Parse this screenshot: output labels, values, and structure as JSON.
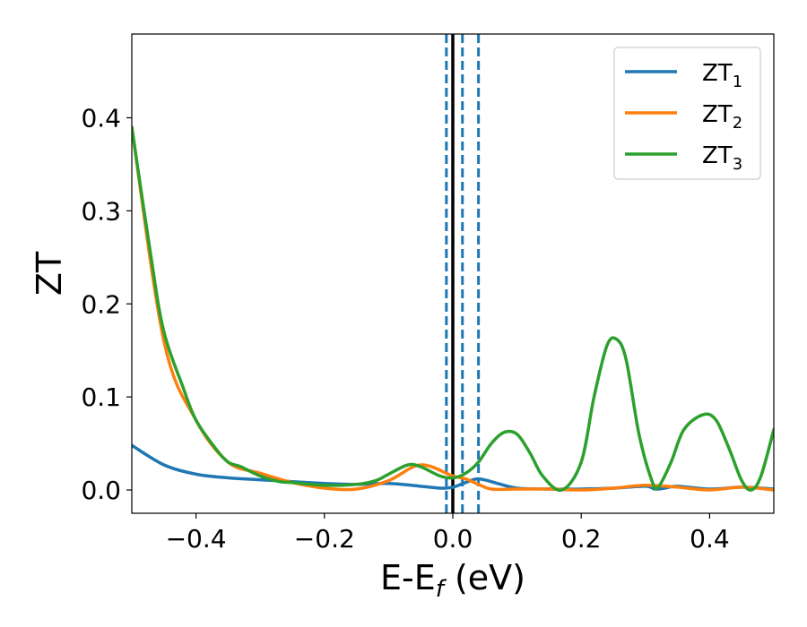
{
  "chart_data": {
    "type": "line",
    "xlabel": "E-E",
    "xlabel_sub": "f",
    "xlabel_unit": " (eV)",
    "ylabel": "ZT",
    "xlim": [
      -0.5,
      0.5
    ],
    "ylim": [
      -0.025,
      0.49
    ],
    "xticks": [
      -0.4,
      -0.2,
      0.0,
      0.2,
      0.4
    ],
    "xtick_labels": [
      "−0.4",
      "−0.2",
      "0.0",
      "0.2",
      "0.4"
    ],
    "yticks": [
      0.0,
      0.1,
      0.2,
      0.3,
      0.4
    ],
    "ytick_labels": [
      "0.0",
      "0.1",
      "0.2",
      "0.3",
      "0.4"
    ],
    "grid": false,
    "legend_position": "top-right",
    "vertical_lines": [
      {
        "x": 0.0,
        "color": "#000000",
        "style": "solid"
      },
      {
        "x": -0.01,
        "color": "#1f77b4",
        "style": "dashed"
      },
      {
        "x": 0.015,
        "color": "#1f77b4",
        "style": "dashed"
      },
      {
        "x": 0.04,
        "color": "#1f77b4",
        "style": "dashed"
      }
    ],
    "series": [
      {
        "name": "ZT",
        "name_sub": "1",
        "color": "#1f77b4",
        "x": [
          -0.5,
          -0.45,
          -0.4,
          -0.35,
          -0.3,
          -0.25,
          -0.2,
          -0.15,
          -0.1,
          -0.05,
          -0.02,
          0.0,
          0.02,
          0.04,
          0.07,
          0.1,
          0.15,
          0.2,
          0.25,
          0.3,
          0.315,
          0.33,
          0.35,
          0.4,
          0.45,
          0.5
        ],
        "y": [
          0.048,
          0.027,
          0.017,
          0.013,
          0.011,
          0.009,
          0.007,
          0.006,
          0.007,
          0.004,
          0.002,
          0.003,
          0.008,
          0.012,
          0.007,
          0.002,
          0.001,
          0.001,
          0.002,
          0.004,
          0.001,
          0.002,
          0.004,
          0.001,
          0.003,
          0.001
        ]
      },
      {
        "name": "ZT",
        "name_sub": "2",
        "color": "#ff7f0e",
        "x": [
          -0.5,
          -0.45,
          -0.4,
          -0.35,
          -0.3,
          -0.25,
          -0.2,
          -0.15,
          -0.1,
          -0.05,
          0.0,
          0.02,
          0.04,
          0.06,
          0.1,
          0.15,
          0.2,
          0.25,
          0.3,
          0.35,
          0.4,
          0.45,
          0.5
        ],
        "y": [
          0.39,
          0.16,
          0.075,
          0.03,
          0.018,
          0.008,
          0.002,
          0.001,
          0.01,
          0.027,
          0.015,
          0.012,
          0.006,
          0.001,
          0.001,
          0.001,
          0.0,
          0.002,
          0.005,
          0.003,
          0.0,
          0.003,
          0.0
        ]
      },
      {
        "name": "ZT",
        "name_sub": "3",
        "color": "#2ca02c",
        "x": [
          -0.5,
          -0.47,
          -0.45,
          -0.42,
          -0.4,
          -0.37,
          -0.35,
          -0.33,
          -0.3,
          -0.27,
          -0.25,
          -0.2,
          -0.15,
          -0.12,
          -0.1,
          -0.07,
          -0.05,
          -0.02,
          0.0,
          0.02,
          0.04,
          0.06,
          0.08,
          0.1,
          0.12,
          0.14,
          0.17,
          0.2,
          0.22,
          0.24,
          0.255,
          0.27,
          0.29,
          0.31,
          0.32,
          0.34,
          0.36,
          0.39,
          0.41,
          0.43,
          0.45,
          0.465,
          0.48,
          0.5
        ],
        "y": [
          0.39,
          0.25,
          0.17,
          0.11,
          0.075,
          0.045,
          0.03,
          0.025,
          0.015,
          0.009,
          0.008,
          0.005,
          0.006,
          0.01,
          0.017,
          0.027,
          0.025,
          0.015,
          0.013,
          0.018,
          0.03,
          0.05,
          0.062,
          0.06,
          0.04,
          0.015,
          0.0,
          0.03,
          0.1,
          0.155,
          0.162,
          0.14,
          0.06,
          0.01,
          0.003,
          0.03,
          0.065,
          0.081,
          0.075,
          0.045,
          0.01,
          0.0,
          0.015,
          0.065
        ]
      }
    ]
  }
}
